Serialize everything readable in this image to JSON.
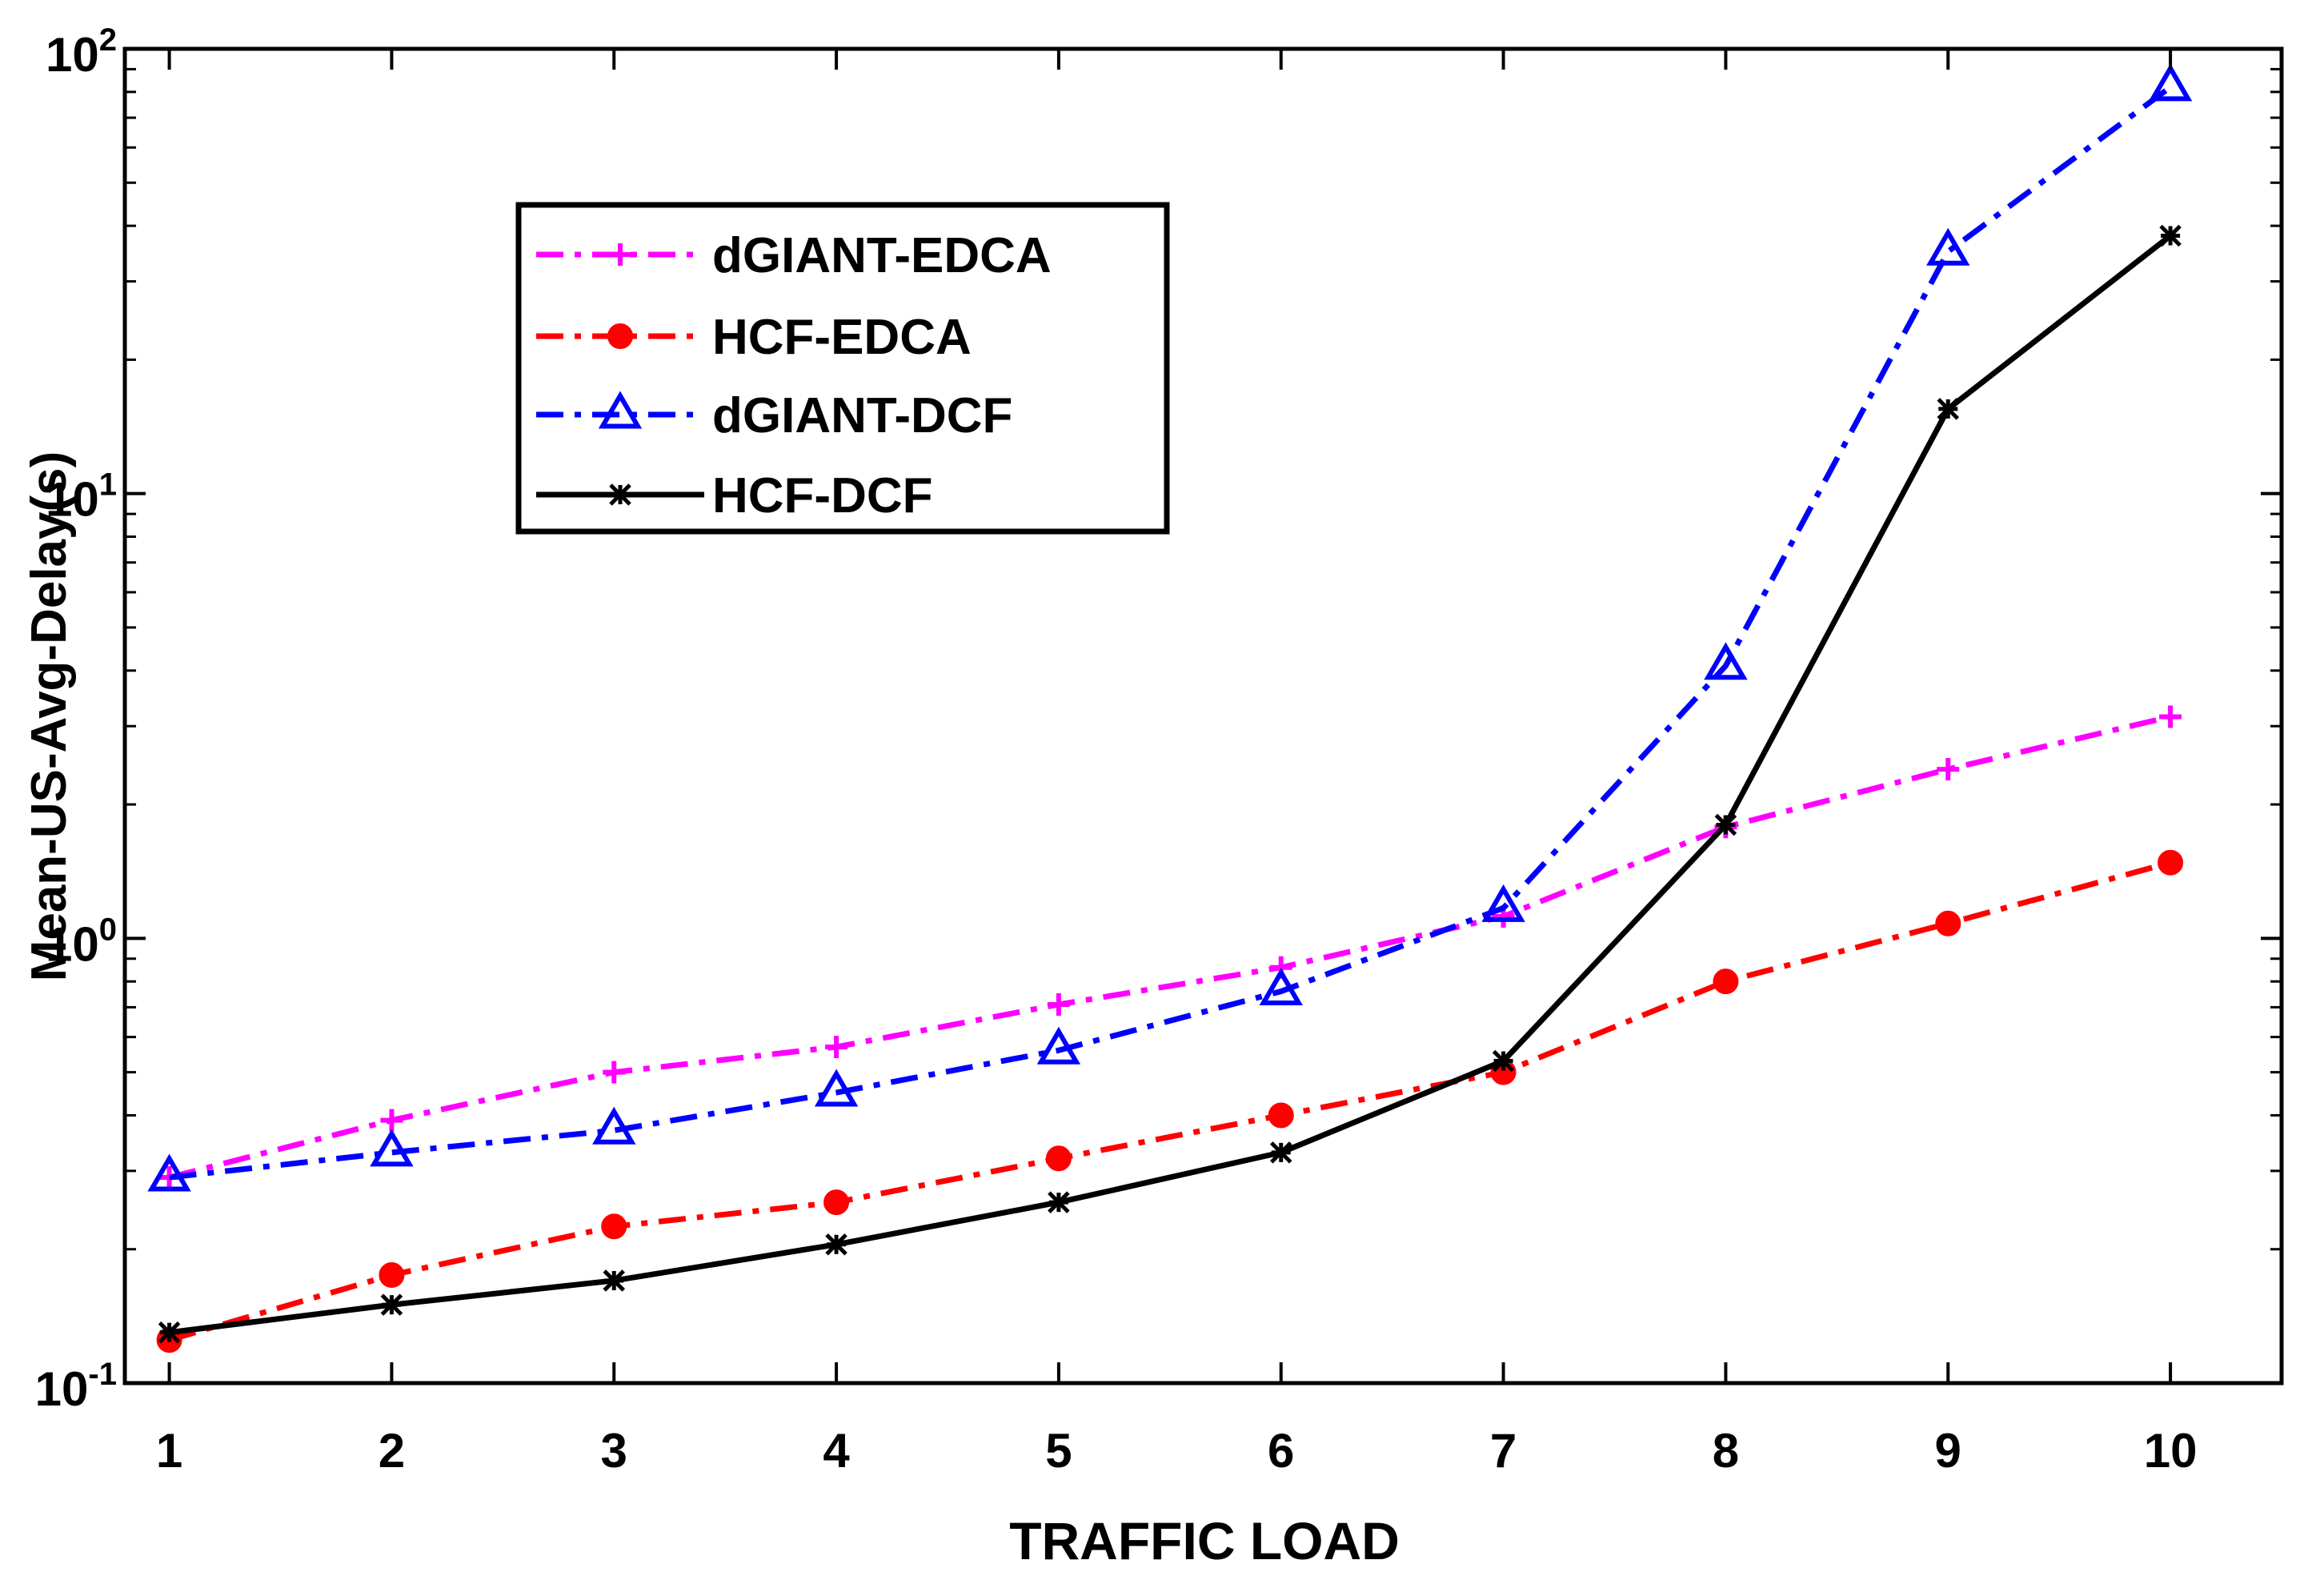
{
  "chart_data": {
    "type": "line",
    "title": "",
    "xlabel": "TRAFFIC LOAD",
    "ylabel": "Mean-US-Avg-Delay(s)",
    "yscale": "log",
    "xlim": [
      0.8,
      10.5
    ],
    "ylim": [
      0.1,
      100
    ],
    "x": [
      1,
      2,
      3,
      4,
      5,
      6,
      7,
      8,
      9,
      10
    ],
    "x_ticks": [
      "1",
      "2",
      "3",
      "4",
      "5",
      "6",
      "7",
      "8",
      "9",
      "10"
    ],
    "y_ticks": [
      {
        "base": "10",
        "exp": "-1",
        "value": 0.1
      },
      {
        "base": "10",
        "exp": "0",
        "value": 1
      },
      {
        "base": "10",
        "exp": "1",
        "value": 10
      },
      {
        "base": "10",
        "exp": "2",
        "value": 100
      }
    ],
    "grid": false,
    "legend_position": "top-left",
    "series": [
      {
        "name": "dGIANT-EDCA",
        "color": "#ff00ff",
        "line_style": "dash-dot",
        "marker": "plus",
        "values": [
          0.29,
          0.39,
          0.5,
          0.57,
          0.71,
          0.86,
          1.12,
          1.78,
          2.4,
          3.15
        ]
      },
      {
        "name": "HCF-EDCA",
        "color": "#ff0000",
        "line_style": "dash-dot",
        "marker": "circle",
        "values": [
          0.125,
          0.175,
          0.225,
          0.255,
          0.32,
          0.4,
          0.5,
          0.8,
          1.08,
          1.48
        ]
      },
      {
        "name": "dGIANT-DCF",
        "color": "#0000ff",
        "line_style": "dash-dot",
        "marker": "triangle",
        "values": [
          0.29,
          0.33,
          0.37,
          0.45,
          0.56,
          0.76,
          1.17,
          4.1,
          35.0,
          82.0
        ]
      },
      {
        "name": "HCF-DCF",
        "color": "#000000",
        "line_style": "solid",
        "marker": "asterisk",
        "values": [
          0.13,
          0.15,
          0.17,
          0.205,
          0.255,
          0.33,
          0.53,
          1.8,
          15.5,
          38.0
        ]
      }
    ]
  }
}
